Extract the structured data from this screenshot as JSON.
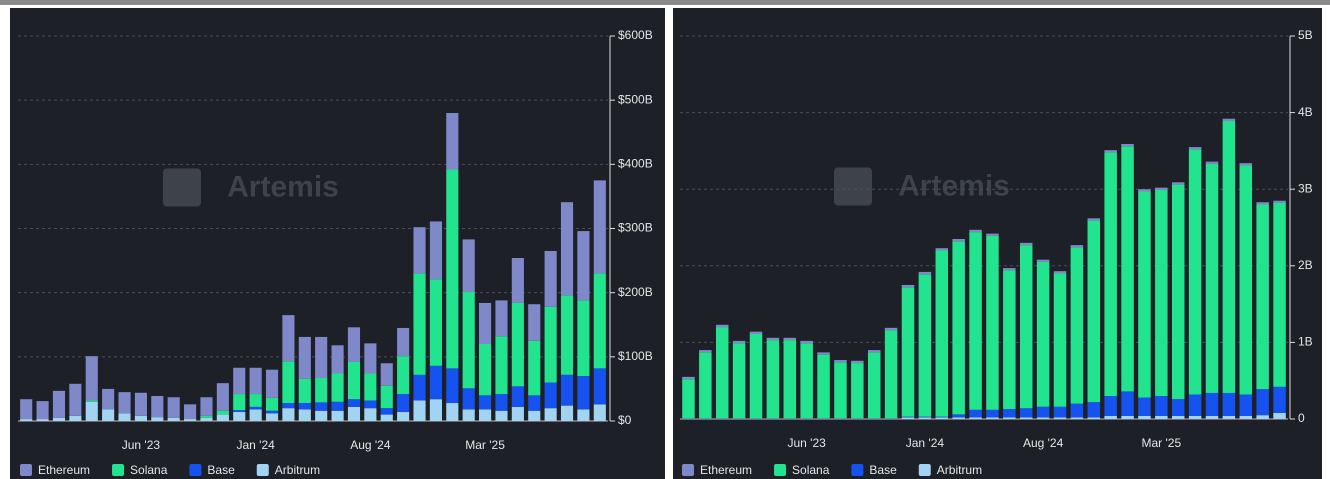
{
  "chart_data": [
    {
      "type": "bar",
      "stacked": true,
      "watermark": "Artemis",
      "grid": true,
      "legend": "bottom-left",
      "categories": [
        null,
        null,
        null,
        null,
        null,
        null,
        null,
        "Jun '23",
        null,
        null,
        null,
        null,
        null,
        null,
        "Jan '24",
        null,
        null,
        null,
        null,
        null,
        null,
        "Aug '24",
        null,
        null,
        null,
        null,
        null,
        null,
        "Mar '25",
        null,
        null,
        null,
        null,
        null,
        null,
        null
      ],
      "ylim": [
        0,
        600
      ],
      "yticks": [
        {
          "value": 0,
          "label": "$0"
        },
        {
          "value": 100,
          "label": "$100B"
        },
        {
          "value": 200,
          "label": "$200B"
        },
        {
          "value": 300,
          "label": "$300B"
        },
        {
          "value": 400,
          "label": "$400B"
        },
        {
          "value": 500,
          "label": "$500B"
        },
        {
          "value": 600,
          "label": "$600B"
        }
      ],
      "series": [
        {
          "name": "Ethereum",
          "color": "#7f88c9",
          "values": [
            31,
            28,
            42,
            50,
            69,
            32,
            33,
            36,
            33,
            32,
            23,
            29,
            43,
            41,
            41,
            44,
            72,
            65,
            64,
            44,
            54,
            47,
            35,
            44,
            72,
            90,
            88,
            82,
            64,
            56,
            70,
            57,
            87,
            145,
            108,
            145
          ]
        },
        {
          "name": "Solana",
          "color": "#22e38e",
          "values": [
            0,
            0,
            0,
            0,
            2,
            0,
            0,
            0,
            0,
            0,
            0,
            3,
            6,
            25,
            20,
            20,
            65,
            38,
            38,
            44,
            58,
            42,
            35,
            59,
            158,
            135,
            310,
            150,
            80,
            90,
            130,
            85,
            118,
            124,
            118,
            148
          ]
        },
        {
          "name": "Base",
          "color": "#1652ef",
          "values": [
            0,
            0,
            0,
            0,
            0,
            0,
            0,
            0,
            0,
            0,
            0,
            0,
            0,
            3,
            4,
            4,
            8,
            10,
            13,
            14,
            12,
            12,
            10,
            28,
            40,
            52,
            54,
            33,
            22,
            26,
            32,
            24,
            40,
            48,
            52,
            56
          ]
        },
        {
          "name": "Arbitrum",
          "color": "#a3d3f2",
          "values": [
            3,
            3,
            5,
            8,
            30,
            18,
            12,
            8,
            6,
            5,
            3,
            5,
            10,
            14,
            18,
            12,
            20,
            18,
            16,
            16,
            22,
            20,
            10,
            14,
            32,
            34,
            28,
            18,
            18,
            16,
            22,
            16,
            20,
            24,
            18,
            26
          ]
        }
      ]
    },
    {
      "type": "bar",
      "stacked": true,
      "watermark": "Artemis",
      "grid": true,
      "legend": "bottom-left",
      "categories": [
        null,
        null,
        null,
        null,
        null,
        null,
        null,
        "Jun '23",
        null,
        null,
        null,
        null,
        null,
        null,
        "Jan '24",
        null,
        null,
        null,
        null,
        null,
        null,
        "Aug '24",
        null,
        null,
        null,
        null,
        null,
        null,
        "Mar '25",
        null,
        null,
        null,
        null,
        null,
        null,
        null
      ],
      "ylim": [
        0,
        5
      ],
      "yticks": [
        0,
        {
          "value": 1,
          "label": "1B"
        },
        {
          "value": 2,
          "label": "2B"
        },
        {
          "value": 3,
          "label": "3B"
        },
        {
          "value": 4,
          "label": "4B"
        },
        {
          "value": 5,
          "label": "5B"
        }
      ],
      "series": [
        {
          "name": "Ethereum",
          "color": "#7f88c9",
          "values": [
            0.03,
            0.03,
            0.03,
            0.03,
            0.03,
            0.03,
            0.03,
            0.03,
            0.03,
            0.03,
            0.03,
            0.03,
            0.03,
            0.03,
            0.03,
            0.03,
            0.03,
            0.03,
            0.03,
            0.03,
            0.03,
            0.03,
            0.03,
            0.03,
            0.03,
            0.03,
            0.03,
            0.03,
            0.03,
            0.03,
            0.03,
            0.03,
            0.03,
            0.03,
            0.03,
            0.03
          ]
        },
        {
          "name": "Solana",
          "color": "#22e38e",
          "values": [
            0.51,
            0.86,
            1.19,
            0.98,
            1.1,
            1.02,
            1.02,
            0.98,
            0.83,
            0.73,
            0.72,
            0.86,
            1.15,
            1.69,
            1.86,
            2.17,
            2.26,
            2.32,
            2.27,
            1.81,
            2.13,
            1.89,
            1.74,
            2.04,
            2.37,
            3.18,
            3.2,
            2.69,
            2.69,
            2.8,
            3.2,
            2.99,
            3.55,
            2.99,
            2.41,
            2.4
          ]
        },
        {
          "name": "Base",
          "color": "#1652ef",
          "values": [
            0.005,
            0.005,
            0.005,
            0.005,
            0.005,
            0.005,
            0.005,
            0.005,
            0.005,
            0.005,
            0.005,
            0.005,
            0.005,
            0.01,
            0.01,
            0.01,
            0.04,
            0.1,
            0.1,
            0.11,
            0.12,
            0.14,
            0.14,
            0.18,
            0.2,
            0.26,
            0.32,
            0.24,
            0.26,
            0.22,
            0.28,
            0.3,
            0.3,
            0.28,
            0.34,
            0.34
          ]
        },
        {
          "name": "Arbitrum",
          "color": "#a3d3f2",
          "values": [
            0.005,
            0.005,
            0.005,
            0.005,
            0.005,
            0.005,
            0.005,
            0.005,
            0.005,
            0.005,
            0.005,
            0.005,
            0.005,
            0.02,
            0.02,
            0.02,
            0.02,
            0.02,
            0.02,
            0.02,
            0.02,
            0.02,
            0.02,
            0.02,
            0.02,
            0.04,
            0.04,
            0.04,
            0.04,
            0.04,
            0.04,
            0.04,
            0.04,
            0.04,
            0.05,
            0.08
          ]
        }
      ]
    }
  ]
}
